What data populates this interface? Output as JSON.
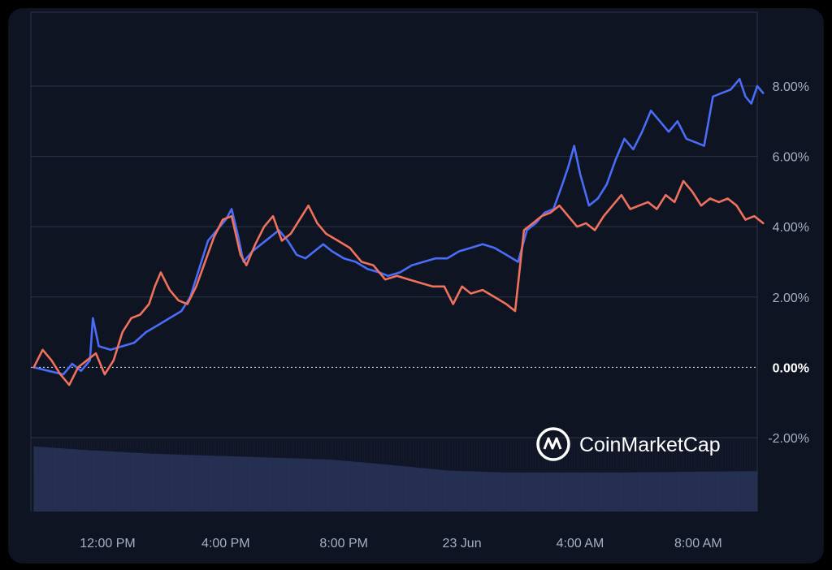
{
  "chart_data": {
    "type": "line",
    "watermark": "CoinMarketCap",
    "y_ticks": [
      "8.00%",
      "6.00%",
      "4.00%",
      "2.00%",
      "0.00%",
      "-2.00%"
    ],
    "y_tick_values": [
      8,
      6,
      4,
      2,
      0,
      -2
    ],
    "ylim": [
      -4.1,
      10.1
    ],
    "x_ticks": [
      "12:00 PM",
      "4:00 PM",
      "8:00 PM",
      "23 Jun",
      "4:00 AM",
      "8:00 AM"
    ],
    "x_tick_hours": [
      2.5,
      6.5,
      10.5,
      14.5,
      18.5,
      22.5
    ],
    "xlim": [
      -0.1,
      24.5
    ],
    "grid": true,
    "zero_line": "dashed",
    "series": [
      {
        "color": "#4a6cf7",
        "points": [
          [
            0,
            0.0
          ],
          [
            0.5,
            -0.1
          ],
          [
            1,
            -0.2
          ],
          [
            1.3,
            0.1
          ],
          [
            1.6,
            -0.1
          ],
          [
            1.9,
            0.2
          ],
          [
            2.0,
            1.4
          ],
          [
            2.2,
            0.6
          ],
          [
            2.6,
            0.5
          ],
          [
            3.0,
            0.6
          ],
          [
            3.4,
            0.7
          ],
          [
            3.8,
            1.0
          ],
          [
            4.2,
            1.2
          ],
          [
            4.6,
            1.4
          ],
          [
            5.0,
            1.6
          ],
          [
            5.3,
            2.0
          ],
          [
            5.6,
            2.8
          ],
          [
            5.9,
            3.6
          ],
          [
            6.2,
            3.9
          ],
          [
            6.5,
            4.2
          ],
          [
            6.7,
            4.5
          ],
          [
            6.9,
            3.8
          ],
          [
            7.1,
            3.0
          ],
          [
            7.4,
            3.3
          ],
          [
            7.7,
            3.5
          ],
          [
            8.0,
            3.7
          ],
          [
            8.3,
            3.9
          ],
          [
            8.6,
            3.6
          ],
          [
            8.9,
            3.2
          ],
          [
            9.2,
            3.1
          ],
          [
            9.5,
            3.3
          ],
          [
            9.8,
            3.5
          ],
          [
            10.1,
            3.3
          ],
          [
            10.5,
            3.1
          ],
          [
            10.9,
            3.0
          ],
          [
            11.3,
            2.8
          ],
          [
            11.7,
            2.7
          ],
          [
            12.0,
            2.6
          ],
          [
            12.4,
            2.7
          ],
          [
            12.8,
            2.9
          ],
          [
            13.2,
            3.0
          ],
          [
            13.6,
            3.1
          ],
          [
            14.0,
            3.1
          ],
          [
            14.4,
            3.3
          ],
          [
            14.8,
            3.4
          ],
          [
            15.2,
            3.5
          ],
          [
            15.6,
            3.4
          ],
          [
            16.0,
            3.2
          ],
          [
            16.4,
            3.0
          ],
          [
            16.7,
            3.9
          ],
          [
            17.0,
            4.1
          ],
          [
            17.3,
            4.4
          ],
          [
            17.6,
            4.5
          ],
          [
            17.9,
            5.2
          ],
          [
            18.1,
            5.7
          ],
          [
            18.3,
            6.3
          ],
          [
            18.5,
            5.5
          ],
          [
            18.8,
            4.6
          ],
          [
            19.1,
            4.8
          ],
          [
            19.4,
            5.2
          ],
          [
            19.7,
            5.9
          ],
          [
            20.0,
            6.5
          ],
          [
            20.3,
            6.2
          ],
          [
            20.6,
            6.7
          ],
          [
            20.9,
            7.3
          ],
          [
            21.2,
            7.0
          ],
          [
            21.5,
            6.7
          ],
          [
            21.8,
            7.0
          ],
          [
            22.1,
            6.5
          ],
          [
            22.4,
            6.4
          ],
          [
            22.7,
            6.3
          ],
          [
            23.0,
            7.7
          ],
          [
            23.3,
            7.8
          ],
          [
            23.6,
            7.9
          ],
          [
            23.9,
            8.2
          ],
          [
            24.1,
            7.7
          ],
          [
            24.3,
            7.5
          ],
          [
            24.5,
            8.0
          ],
          [
            24.7,
            7.8
          ]
        ]
      },
      {
        "color": "#f0715c",
        "points": [
          [
            0,
            0.0
          ],
          [
            0.3,
            0.5
          ],
          [
            0.6,
            0.2
          ],
          [
            0.9,
            -0.2
          ],
          [
            1.2,
            -0.5
          ],
          [
            1.5,
            0.0
          ],
          [
            1.8,
            0.2
          ],
          [
            2.1,
            0.4
          ],
          [
            2.4,
            -0.2
          ],
          [
            2.7,
            0.2
          ],
          [
            3.0,
            1.0
          ],
          [
            3.3,
            1.4
          ],
          [
            3.6,
            1.5
          ],
          [
            3.9,
            1.8
          ],
          [
            4.1,
            2.3
          ],
          [
            4.3,
            2.7
          ],
          [
            4.6,
            2.2
          ],
          [
            4.9,
            1.9
          ],
          [
            5.2,
            1.8
          ],
          [
            5.5,
            2.3
          ],
          [
            5.8,
            3.0
          ],
          [
            6.1,
            3.7
          ],
          [
            6.4,
            4.2
          ],
          [
            6.7,
            4.3
          ],
          [
            7.0,
            3.2
          ],
          [
            7.2,
            2.9
          ],
          [
            7.5,
            3.5
          ],
          [
            7.8,
            4.0
          ],
          [
            8.1,
            4.3
          ],
          [
            8.4,
            3.6
          ],
          [
            8.7,
            3.8
          ],
          [
            9.0,
            4.2
          ],
          [
            9.3,
            4.6
          ],
          [
            9.6,
            4.1
          ],
          [
            9.9,
            3.8
          ],
          [
            10.3,
            3.6
          ],
          [
            10.7,
            3.4
          ],
          [
            11.1,
            3.0
          ],
          [
            11.5,
            2.9
          ],
          [
            11.9,
            2.5
          ],
          [
            12.3,
            2.6
          ],
          [
            12.7,
            2.5
          ],
          [
            13.1,
            2.4
          ],
          [
            13.5,
            2.3
          ],
          [
            13.9,
            2.3
          ],
          [
            14.2,
            1.8
          ],
          [
            14.5,
            2.3
          ],
          [
            14.8,
            2.1
          ],
          [
            15.2,
            2.2
          ],
          [
            15.6,
            2.0
          ],
          [
            16.0,
            1.8
          ],
          [
            16.3,
            1.6
          ],
          [
            16.6,
            3.9
          ],
          [
            16.9,
            4.1
          ],
          [
            17.2,
            4.3
          ],
          [
            17.5,
            4.4
          ],
          [
            17.8,
            4.6
          ],
          [
            18.1,
            4.3
          ],
          [
            18.4,
            4.0
          ],
          [
            18.7,
            4.1
          ],
          [
            19.0,
            3.9
          ],
          [
            19.3,
            4.3
          ],
          [
            19.6,
            4.6
          ],
          [
            19.9,
            4.9
          ],
          [
            20.2,
            4.5
          ],
          [
            20.5,
            4.6
          ],
          [
            20.8,
            4.7
          ],
          [
            21.1,
            4.5
          ],
          [
            21.4,
            4.9
          ],
          [
            21.7,
            4.7
          ],
          [
            22.0,
            5.3
          ],
          [
            22.3,
            5.0
          ],
          [
            22.6,
            4.6
          ],
          [
            22.9,
            4.8
          ],
          [
            23.2,
            4.7
          ],
          [
            23.5,
            4.8
          ],
          [
            23.8,
            4.6
          ],
          [
            24.1,
            4.2
          ],
          [
            24.4,
            4.3
          ],
          [
            24.7,
            4.1
          ]
        ]
      }
    ],
    "volume": {
      "color": "#263154",
      "x": [
        0,
        2,
        4,
        6,
        8,
        10,
        12,
        14,
        16,
        18,
        20,
        22,
        24.5
      ],
      "level": [
        1.0,
        0.94,
        0.89,
        0.86,
        0.83,
        0.8,
        0.72,
        0.63,
        0.6,
        0.6,
        0.6,
        0.61,
        0.62
      ]
    }
  }
}
